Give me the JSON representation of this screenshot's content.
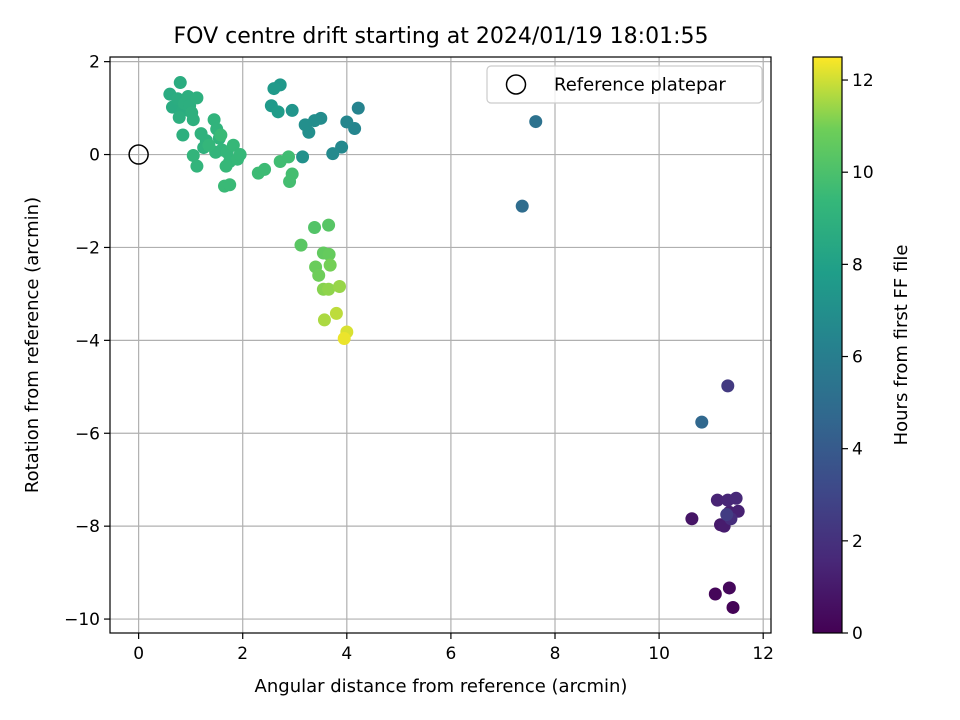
{
  "chart_data": {
    "type": "scatter",
    "title": "FOV centre drift starting at 2024/01/19 18:01:55",
    "xlabel": "Angular distance from reference (arcmin)",
    "ylabel": "Rotation from reference (arcmin)",
    "xlim": [
      -0.55,
      12.15
    ],
    "ylim": [
      -10.3,
      2.1
    ],
    "x_ticks": [
      0,
      2,
      4,
      6,
      8,
      10,
      12
    ],
    "x_tick_labels": [
      "0",
      "2",
      "4",
      "6",
      "8",
      "10",
      "12"
    ],
    "y_ticks": [
      2,
      0,
      -2,
      -4,
      -6,
      -8,
      -10
    ],
    "y_tick_labels": [
      "2",
      "0",
      "−2",
      "−4",
      "−6",
      "−8",
      "−10"
    ],
    "grid": true,
    "legend": {
      "placement": "top-right",
      "entries": [
        "Reference platepar"
      ]
    },
    "reference_point": {
      "label": "Reference platepar",
      "x": 0,
      "y": 0
    },
    "colorbar": {
      "label": "Hours from first FF file",
      "range": [
        0,
        12.5
      ],
      "ticks": [
        0,
        2,
        4,
        6,
        8,
        10,
        12
      ],
      "tick_labels": [
        "0",
        "2",
        "4",
        "6",
        "8",
        "10",
        "12"
      ],
      "colormap": "viridis"
    },
    "points": [
      {
        "x": 11.42,
        "y": -9.75,
        "h": 0.1
      },
      {
        "x": 11.08,
        "y": -9.46,
        "h": 0.2
      },
      {
        "x": 11.35,
        "y": -9.33,
        "h": 0.3
      },
      {
        "x": 10.63,
        "y": -7.84,
        "h": 0.8
      },
      {
        "x": 11.18,
        "y": -7.97,
        "h": 1.0
      },
      {
        "x": 11.25,
        "y": -8.0,
        "h": 1.1
      },
      {
        "x": 11.35,
        "y": -7.7,
        "h": 1.2
      },
      {
        "x": 11.52,
        "y": -7.68,
        "h": 1.3
      },
      {
        "x": 11.12,
        "y": -7.44,
        "h": 1.4
      },
      {
        "x": 11.32,
        "y": -7.44,
        "h": 1.5
      },
      {
        "x": 11.48,
        "y": -7.4,
        "h": 1.6
      },
      {
        "x": 11.38,
        "y": -7.84,
        "h": 1.8
      },
      {
        "x": 11.3,
        "y": -7.75,
        "h": 2.5
      },
      {
        "x": 11.32,
        "y": -4.98,
        "h": 2.4
      },
      {
        "x": 10.82,
        "y": -5.76,
        "h": 4.7
      },
      {
        "x": 7.37,
        "y": -1.11,
        "h": 5.0
      },
      {
        "x": 7.63,
        "y": 0.71,
        "h": 5.3
      },
      {
        "x": 4.22,
        "y": 1.0,
        "h": 6.3
      },
      {
        "x": 4.15,
        "y": 0.56,
        "h": 6.4
      },
      {
        "x": 4.0,
        "y": 0.7,
        "h": 6.5
      },
      {
        "x": 3.9,
        "y": 0.16,
        "h": 6.6
      },
      {
        "x": 3.73,
        "y": 0.02,
        "h": 6.7
      },
      {
        "x": 3.5,
        "y": 0.78,
        "h": 6.8
      },
      {
        "x": 3.38,
        "y": 0.73,
        "h": 6.9
      },
      {
        "x": 3.27,
        "y": 0.48,
        "h": 7.0
      },
      {
        "x": 3.2,
        "y": 0.64,
        "h": 7.0
      },
      {
        "x": 3.15,
        "y": -0.05,
        "h": 7.1
      },
      {
        "x": 2.95,
        "y": 0.95,
        "h": 7.3
      },
      {
        "x": 2.72,
        "y": 1.5,
        "h": 7.5
      },
      {
        "x": 2.6,
        "y": 1.42,
        "h": 7.6
      },
      {
        "x": 2.55,
        "y": 1.05,
        "h": 7.6
      },
      {
        "x": 2.68,
        "y": 0.92,
        "h": 7.7
      },
      {
        "x": 0.6,
        "y": 1.3,
        "h": 8.6
      },
      {
        "x": 0.65,
        "y": 1.02,
        "h": 8.6
      },
      {
        "x": 0.75,
        "y": 1.2,
        "h": 8.7
      },
      {
        "x": 0.8,
        "y": 1.55,
        "h": 8.7
      },
      {
        "x": 0.85,
        "y": 0.95,
        "h": 8.7
      },
      {
        "x": 0.88,
        "y": 1.1,
        "h": 8.8
      },
      {
        "x": 0.95,
        "y": 1.25,
        "h": 8.8
      },
      {
        "x": 0.98,
        "y": 1.05,
        "h": 8.8
      },
      {
        "x": 0.78,
        "y": 0.8,
        "h": 8.8
      },
      {
        "x": 1.02,
        "y": 0.9,
        "h": 8.9
      },
      {
        "x": 1.12,
        "y": 1.22,
        "h": 8.9
      },
      {
        "x": 1.05,
        "y": 0.75,
        "h": 8.9
      },
      {
        "x": 0.85,
        "y": 0.42,
        "h": 8.9
      },
      {
        "x": 1.2,
        "y": 0.45,
        "h": 9.0
      },
      {
        "x": 1.3,
        "y": 0.3,
        "h": 9.0
      },
      {
        "x": 1.25,
        "y": 0.15,
        "h": 9.0
      },
      {
        "x": 1.45,
        "y": 0.75,
        "h": 9.1
      },
      {
        "x": 1.5,
        "y": 0.55,
        "h": 9.1
      },
      {
        "x": 1.55,
        "y": 0.35,
        "h": 9.1
      },
      {
        "x": 1.6,
        "y": 0.1,
        "h": 9.2
      },
      {
        "x": 1.48,
        "y": 0.05,
        "h": 9.2
      },
      {
        "x": 1.05,
        "y": -0.02,
        "h": 9.2
      },
      {
        "x": 1.12,
        "y": -0.25,
        "h": 9.2
      },
      {
        "x": 1.35,
        "y": 0.2,
        "h": 9.3
      },
      {
        "x": 1.7,
        "y": 0.05,
        "h": 9.3
      },
      {
        "x": 1.75,
        "y": -0.15,
        "h": 9.3
      },
      {
        "x": 1.82,
        "y": 0.2,
        "h": 9.4
      },
      {
        "x": 1.68,
        "y": -0.25,
        "h": 9.4
      },
      {
        "x": 1.9,
        "y": -0.1,
        "h": 9.4
      },
      {
        "x": 1.95,
        "y": 0.0,
        "h": 9.4
      },
      {
        "x": 1.65,
        "y": -0.68,
        "h": 9.5
      },
      {
        "x": 1.75,
        "y": -0.65,
        "h": 9.5
      },
      {
        "x": 1.58,
        "y": 0.42,
        "h": 9.5
      },
      {
        "x": 2.3,
        "y": -0.4,
        "h": 9.6
      },
      {
        "x": 2.42,
        "y": -0.32,
        "h": 9.6
      },
      {
        "x": 2.72,
        "y": -0.15,
        "h": 9.7
      },
      {
        "x": 2.88,
        "y": -0.05,
        "h": 9.7
      },
      {
        "x": 2.95,
        "y": -0.42,
        "h": 9.8
      },
      {
        "x": 2.9,
        "y": -0.58,
        "h": 9.8
      },
      {
        "x": 3.38,
        "y": -1.57,
        "h": 10.2
      },
      {
        "x": 3.65,
        "y": -1.52,
        "h": 10.3
      },
      {
        "x": 3.12,
        "y": -1.95,
        "h": 10.4
      },
      {
        "x": 3.55,
        "y": -2.12,
        "h": 10.6
      },
      {
        "x": 3.66,
        "y": -2.15,
        "h": 10.7
      },
      {
        "x": 3.4,
        "y": -2.42,
        "h": 10.8
      },
      {
        "x": 3.46,
        "y": -2.6,
        "h": 10.9
      },
      {
        "x": 3.68,
        "y": -2.38,
        "h": 11.0
      },
      {
        "x": 3.55,
        "y": -2.9,
        "h": 11.2
      },
      {
        "x": 3.65,
        "y": -2.9,
        "h": 11.3
      },
      {
        "x": 3.86,
        "y": -2.84,
        "h": 11.4
      },
      {
        "x": 3.57,
        "y": -3.56,
        "h": 11.6
      },
      {
        "x": 3.8,
        "y": -3.42,
        "h": 11.8
      },
      {
        "x": 4.0,
        "y": -3.82,
        "h": 12.1
      },
      {
        "x": 3.95,
        "y": -3.96,
        "h": 12.3
      }
    ]
  }
}
